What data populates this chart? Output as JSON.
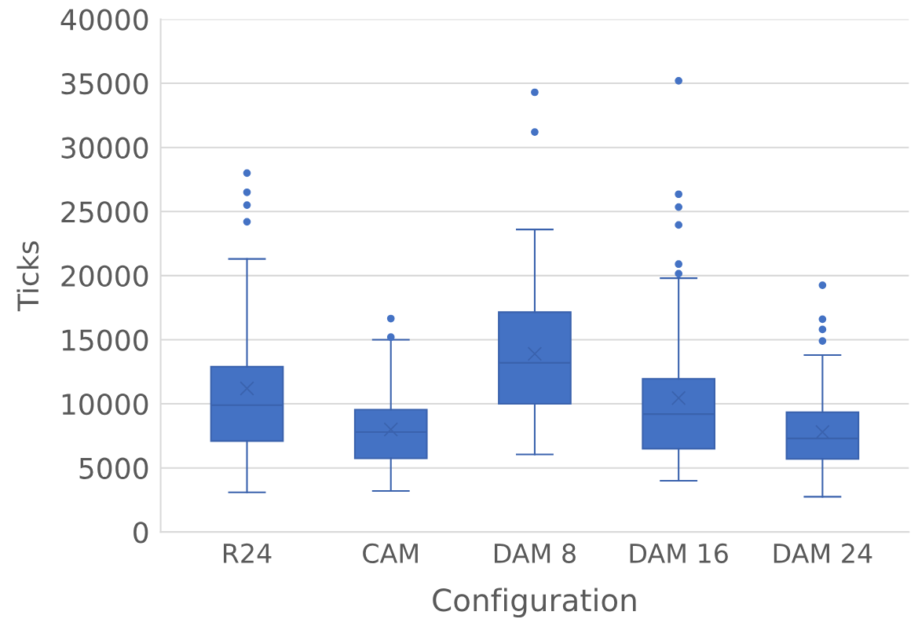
{
  "chart_data": {
    "type": "box",
    "xlabel": "Configuration",
    "ylabel": "Ticks",
    "categories": [
      "R24",
      "CAM",
      "DAM 8",
      "DAM 16",
      "DAM 24"
    ],
    "series": [
      {
        "color": "#4472c4",
        "boxes": [
          {
            "low": 3100,
            "q1": 7100,
            "median": 9900,
            "q3": 12900,
            "high": 21300,
            "mean": 11200,
            "outliers": [
              24200,
              25500,
              26500,
              28000
            ]
          },
          {
            "low": 3200,
            "q1": 5750,
            "median": 7800,
            "q3": 9550,
            "high": 15000,
            "mean": 8000,
            "outliers": [
              15200,
              16650
            ]
          },
          {
            "low": 6050,
            "q1": 10000,
            "median": 13200,
            "q3": 17150,
            "high": 23600,
            "mean": 13900,
            "outliers": [
              31200,
              34300
            ]
          },
          {
            "low": 4000,
            "q1": 6500,
            "median": 9200,
            "q3": 11950,
            "high": 19800,
            "mean": 10450,
            "outliers": [
              20150,
              20900,
              23950,
              25350,
              26350,
              35200
            ]
          },
          {
            "low": 2750,
            "q1": 5700,
            "median": 7300,
            "q3": 9350,
            "high": 13800,
            "mean": 7800,
            "outliers": [
              14900,
              15800,
              16600,
              19250
            ]
          }
        ]
      }
    ],
    "ylim": [
      0,
      40000
    ],
    "yticks": [
      0,
      5000,
      10000,
      15000,
      20000,
      25000,
      30000,
      35000,
      40000
    ],
    "grid": "y",
    "legend": false
  }
}
